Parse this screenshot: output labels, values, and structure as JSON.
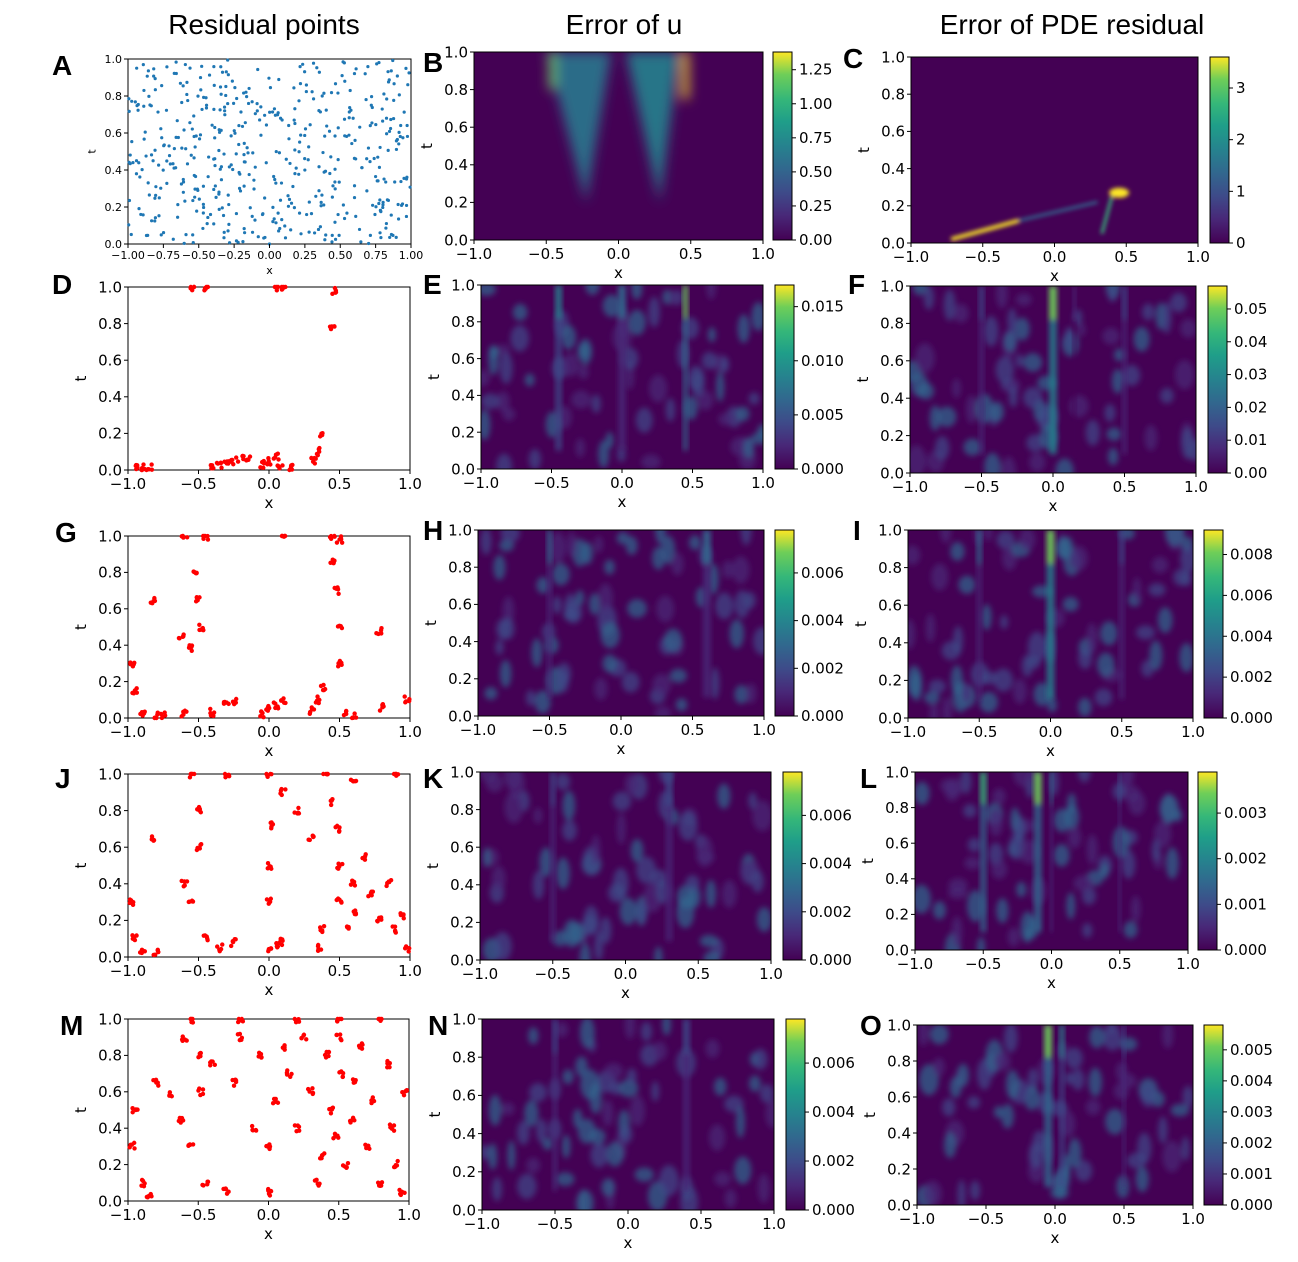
{
  "column_titles": [
    "Residual points",
    "Error of u",
    "Error of PDE residual"
  ],
  "chart_data": [
    {
      "panel": "A",
      "type": "scatter",
      "title": "Residual points",
      "xlabel": "x",
      "ylabel": "t",
      "xlim": [
        -1,
        1
      ],
      "ylim": [
        0,
        1
      ],
      "xticks": [
        "−1.00",
        "−0.75",
        "−0.50",
        "−0.25",
        "0.00",
        "0.25",
        "0.50",
        "0.75",
        "1.00"
      ],
      "yticks": [
        "0.0",
        "0.2",
        "0.4",
        "0.6",
        "0.8",
        "1.0"
      ],
      "marker_color": "#1f77b4",
      "distribution": "uniform random",
      "approx_count": 500
    },
    {
      "panel": "B",
      "type": "heatmap",
      "title": "Error of u",
      "xlabel": "x",
      "ylabel": "t",
      "xlim": [
        -1,
        1
      ],
      "ylim": [
        0,
        1
      ],
      "xticks": [
        "−1.0",
        "−0.5",
        "0.0",
        "0.5",
        "1.0"
      ],
      "yticks": [
        "0.0",
        "0.2",
        "0.4",
        "0.6",
        "0.8",
        "1.0"
      ],
      "colorbar_ticks": [
        "0.00",
        "0.25",
        "0.50",
        "0.75",
        "1.00",
        "1.25"
      ],
      "colorbar_max": 1.38
    },
    {
      "panel": "C",
      "type": "heatmap",
      "title": "Error of PDE residual",
      "xlabel": "x",
      "ylabel": "t",
      "xlim": [
        -1,
        1
      ],
      "ylim": [
        0,
        1
      ],
      "xticks": [
        "−1.0",
        "−0.5",
        "0.0",
        "0.5",
        "1.0"
      ],
      "yticks": [
        "0.0",
        "0.2",
        "0.4",
        "0.6",
        "0.8",
        "1.0"
      ],
      "colorbar_ticks": [
        "0",
        "1",
        "2",
        "3"
      ],
      "colorbar_max": 3.6
    },
    {
      "panel": "D",
      "type": "scatter",
      "xlabel": "x",
      "ylabel": "t",
      "xlim": [
        -1,
        1
      ],
      "ylim": [
        0,
        1
      ],
      "xticks": [
        "−1.0",
        "−0.5",
        "0.0",
        "0.5",
        "1.0"
      ],
      "yticks": [
        "0.0",
        "0.2",
        "0.4",
        "0.6",
        "0.8",
        "1.0"
      ],
      "marker_color": "#ff0000",
      "points": [
        [
          -0.95,
          0.01
        ],
        [
          -0.9,
          0.01
        ],
        [
          -0.85,
          0.01
        ],
        [
          -0.4,
          0.01
        ],
        [
          -0.35,
          0.02
        ],
        [
          -0.3,
          0.03
        ],
        [
          -0.25,
          0.05
        ],
        [
          -0.2,
          0.06
        ],
        [
          -0.15,
          0.07
        ],
        [
          -0.05,
          0.03
        ],
        [
          0.0,
          0.05
        ],
        [
          0.05,
          0.07
        ],
        [
          0.08,
          0.01
        ],
        [
          0.15,
          0.01
        ],
        [
          0.32,
          0.05
        ],
        [
          0.35,
          0.1
        ],
        [
          0.37,
          0.19
        ],
        [
          0.45,
          0.77
        ],
        [
          0.46,
          0.98
        ],
        [
          -0.55,
          1.0
        ],
        [
          -0.45,
          1.0
        ],
        [
          0.05,
          1.0
        ],
        [
          0.1,
          1.0
        ]
      ]
    },
    {
      "panel": "E",
      "type": "heatmap",
      "xlabel": "x",
      "ylabel": "t",
      "xlim": [
        -1,
        1
      ],
      "ylim": [
        0,
        1
      ],
      "xticks": [
        "−1.0",
        "−0.5",
        "0.0",
        "0.5",
        "1.0"
      ],
      "yticks": [
        "0.0",
        "0.2",
        "0.4",
        "0.6",
        "0.8",
        "1.0"
      ],
      "colorbar_ticks": [
        "0.000",
        "0.005",
        "0.010",
        "0.015"
      ],
      "colorbar_max": 0.017
    },
    {
      "panel": "F",
      "type": "heatmap",
      "xlabel": "x",
      "ylabel": "t",
      "xlim": [
        -1,
        1
      ],
      "ylim": [
        0,
        1
      ],
      "xticks": [
        "−1.0",
        "−0.5",
        "0.0",
        "0.5",
        "1.0"
      ],
      "yticks": [
        "0.0",
        "0.2",
        "0.4",
        "0.6",
        "0.8",
        "1.0"
      ],
      "colorbar_ticks": [
        "0.00",
        "0.01",
        "0.02",
        "0.03",
        "0.04",
        "0.05"
      ],
      "colorbar_max": 0.057
    },
    {
      "panel": "G",
      "type": "scatter",
      "xlabel": "x",
      "ylabel": "t",
      "xlim": [
        -1,
        1
      ],
      "ylim": [
        0,
        1
      ],
      "xticks": [
        "−1.0",
        "−0.5",
        "0.0",
        "0.5",
        "1.0"
      ],
      "yticks": [
        "0.0",
        "0.2",
        "0.4",
        "0.6",
        "0.8",
        "1.0"
      ],
      "marker_color": "#ff0000",
      "points": [
        [
          -0.97,
          0.3
        ],
        [
          -0.95,
          0.15
        ],
        [
          -0.9,
          0.02
        ],
        [
          -0.8,
          0.01
        ],
        [
          -0.75,
          0.01
        ],
        [
          -0.82,
          0.65
        ],
        [
          -0.62,
          0.45
        ],
        [
          -0.55,
          0.38
        ],
        [
          -0.52,
          0.8
        ],
        [
          -0.5,
          0.65
        ],
        [
          -0.48,
          0.5
        ],
        [
          -0.6,
          0.02
        ],
        [
          -0.4,
          0.03
        ],
        [
          -0.3,
          0.07
        ],
        [
          -0.25,
          0.09
        ],
        [
          -0.05,
          0.02
        ],
        [
          0.0,
          0.05
        ],
        [
          0.05,
          0.07
        ],
        [
          0.1,
          0.1
        ],
        [
          0.3,
          0.04
        ],
        [
          0.35,
          0.1
        ],
        [
          0.38,
          0.17
        ],
        [
          0.45,
          0.85
        ],
        [
          0.48,
          0.7
        ],
        [
          0.5,
          0.5
        ],
        [
          0.5,
          0.3
        ],
        [
          0.55,
          0.02
        ],
        [
          0.6,
          0.01
        ],
        [
          0.78,
          0.48
        ],
        [
          0.8,
          0.06
        ],
        [
          0.98,
          0.1
        ],
        [
          -0.6,
          1.0
        ],
        [
          -0.45,
          1.0
        ],
        [
          0.1,
          1.0
        ],
        [
          0.45,
          1.0
        ],
        [
          0.5,
          0.98
        ]
      ]
    },
    {
      "panel": "H",
      "type": "heatmap",
      "xlabel": "x",
      "ylabel": "t",
      "xlim": [
        -1,
        1
      ],
      "ylim": [
        0,
        1
      ],
      "xticks": [
        "−1.0",
        "−0.5",
        "0.0",
        "0.5",
        "1.0"
      ],
      "yticks": [
        "0.0",
        "0.2",
        "0.4",
        "0.6",
        "0.8",
        "1.0"
      ],
      "colorbar_ticks": [
        "0.000",
        "0.002",
        "0.004",
        "0.006"
      ],
      "colorbar_max": 0.0078
    },
    {
      "panel": "I",
      "type": "heatmap",
      "xlabel": "x",
      "ylabel": "t",
      "xlim": [
        -1,
        1
      ],
      "ylim": [
        0,
        1
      ],
      "xticks": [
        "−1.0",
        "−0.5",
        "0.0",
        "0.5",
        "1.0"
      ],
      "yticks": [
        "0.0",
        "0.2",
        "0.4",
        "0.6",
        "0.8",
        "1.0"
      ],
      "colorbar_ticks": [
        "0.000",
        "0.002",
        "0.004",
        "0.006",
        "0.008"
      ],
      "colorbar_max": 0.0092
    },
    {
      "panel": "J",
      "type": "scatter",
      "xlabel": "x",
      "ylabel": "t",
      "xlim": [
        -1,
        1
      ],
      "ylim": [
        0,
        1
      ],
      "xticks": [
        "−1.0",
        "−0.5",
        "0.0",
        "0.5",
        "1.0"
      ],
      "yticks": [
        "0.0",
        "0.2",
        "0.4",
        "0.6",
        "0.8",
        "1.0"
      ],
      "marker_color": "#ff0000",
      "points": [
        [
          -0.97,
          0.3
        ],
        [
          -0.95,
          0.1
        ],
        [
          -0.9,
          0.02
        ],
        [
          -0.8,
          0.02
        ],
        [
          -0.82,
          0.65
        ],
        [
          -0.6,
          0.4
        ],
        [
          -0.55,
          0.3
        ],
        [
          -0.5,
          0.8
        ],
        [
          -0.5,
          0.6
        ],
        [
          -0.45,
          0.1
        ],
        [
          -0.35,
          0.05
        ],
        [
          -0.25,
          0.08
        ],
        [
          0.0,
          0.04
        ],
        [
          0.05,
          0.06
        ],
        [
          0.1,
          0.08
        ],
        [
          0.0,
          0.3
        ],
        [
          0.0,
          0.5
        ],
        [
          0.03,
          0.72
        ],
        [
          0.1,
          0.9
        ],
        [
          0.2,
          0.8
        ],
        [
          0.3,
          0.65
        ],
        [
          0.35,
          0.05
        ],
        [
          0.38,
          0.15
        ],
        [
          0.45,
          0.85
        ],
        [
          0.48,
          0.7
        ],
        [
          0.5,
          0.5
        ],
        [
          0.5,
          0.3
        ],
        [
          0.55,
          0.15
        ],
        [
          0.6,
          0.4
        ],
        [
          0.62,
          0.25
        ],
        [
          0.68,
          0.55
        ],
        [
          0.72,
          0.35
        ],
        [
          0.78,
          0.2
        ],
        [
          0.85,
          0.4
        ],
        [
          0.88,
          0.15
        ],
        [
          0.95,
          0.22
        ],
        [
          0.98,
          0.05
        ],
        [
          -0.55,
          1.0
        ],
        [
          -0.3,
          1.0
        ],
        [
          0.0,
          1.0
        ],
        [
          0.4,
          1.0
        ],
        [
          0.6,
          0.98
        ],
        [
          0.9,
          1.0
        ]
      ]
    },
    {
      "panel": "K",
      "type": "heatmap",
      "xlabel": "x",
      "ylabel": "t",
      "xlim": [
        -1,
        1
      ],
      "ylim": [
        0,
        1
      ],
      "xticks": [
        "−1.0",
        "−0.5",
        "0.0",
        "0.5",
        "1.0"
      ],
      "yticks": [
        "0.0",
        "0.2",
        "0.4",
        "0.6",
        "0.8",
        "1.0"
      ],
      "colorbar_ticks": [
        "0.000",
        "0.002",
        "0.004",
        "0.006"
      ],
      "colorbar_max": 0.0078
    },
    {
      "panel": "L",
      "type": "heatmap",
      "xlabel": "x",
      "ylabel": "t",
      "xlim": [
        -1,
        1
      ],
      "ylim": [
        0,
        1
      ],
      "xticks": [
        "−1.0",
        "−0.5",
        "0.0",
        "0.5",
        "1.0"
      ],
      "yticks": [
        "0.0",
        "0.2",
        "0.4",
        "0.6",
        "0.8",
        "1.0"
      ],
      "colorbar_ticks": [
        "0.000",
        "0.001",
        "0.002",
        "0.003"
      ],
      "colorbar_max": 0.0039
    },
    {
      "panel": "M",
      "type": "scatter",
      "xlabel": "x",
      "ylabel": "t",
      "xlim": [
        -1,
        1
      ],
      "ylim": [
        0,
        1
      ],
      "xticks": [
        "−1.0",
        "−0.5",
        "0.0",
        "0.5",
        "1.0"
      ],
      "yticks": [
        "0.0",
        "0.2",
        "0.4",
        "0.6",
        "0.8",
        "1.0"
      ],
      "marker_color": "#ff0000",
      "points": [
        [
          -0.97,
          0.3
        ],
        [
          -0.95,
          0.5
        ],
        [
          -0.9,
          0.1
        ],
        [
          -0.85,
          0.02
        ],
        [
          -0.8,
          0.65
        ],
        [
          -0.7,
          0.58
        ],
        [
          -0.62,
          0.45
        ],
        [
          -0.6,
          0.9
        ],
        [
          -0.55,
          0.3
        ],
        [
          -0.5,
          0.8
        ],
        [
          -0.48,
          0.6
        ],
        [
          -0.45,
          0.1
        ],
        [
          -0.4,
          0.75
        ],
        [
          -0.3,
          0.05
        ],
        [
          -0.25,
          0.65
        ],
        [
          -0.2,
          0.9
        ],
        [
          -0.1,
          0.4
        ],
        [
          -0.05,
          0.8
        ],
        [
          0.0,
          0.05
        ],
        [
          0.0,
          0.3
        ],
        [
          0.05,
          0.55
        ],
        [
          0.1,
          0.85
        ],
        [
          0.15,
          0.7
        ],
        [
          0.2,
          0.4
        ],
        [
          0.25,
          0.9
        ],
        [
          0.3,
          0.6
        ],
        [
          0.35,
          0.1
        ],
        [
          0.38,
          0.25
        ],
        [
          0.42,
          0.8
        ],
        [
          0.45,
          0.5
        ],
        [
          0.48,
          0.35
        ],
        [
          0.5,
          0.9
        ],
        [
          0.52,
          0.7
        ],
        [
          0.55,
          0.2
        ],
        [
          0.6,
          0.45
        ],
        [
          0.62,
          0.65
        ],
        [
          0.65,
          0.85
        ],
        [
          0.7,
          0.3
        ],
        [
          0.75,
          0.55
        ],
        [
          0.8,
          0.1
        ],
        [
          0.85,
          0.75
        ],
        [
          0.88,
          0.4
        ],
        [
          0.9,
          0.2
        ],
        [
          0.95,
          0.05
        ],
        [
          0.97,
          0.6
        ],
        [
          -0.55,
          1.0
        ],
        [
          -0.2,
          1.0
        ],
        [
          0.2,
          1.0
        ],
        [
          0.5,
          1.0
        ],
        [
          0.8,
          1.0
        ]
      ]
    },
    {
      "panel": "N",
      "type": "heatmap",
      "xlabel": "x",
      "ylabel": "t",
      "xlim": [
        -1,
        1
      ],
      "ylim": [
        0,
        1
      ],
      "xticks": [
        "−1.0",
        "−0.5",
        "0.0",
        "0.5",
        "1.0"
      ],
      "yticks": [
        "0.0",
        "0.2",
        "0.4",
        "0.6",
        "0.8",
        "1.0"
      ],
      "colorbar_ticks": [
        "0.000",
        "0.002",
        "0.004",
        "0.006"
      ],
      "colorbar_max": 0.0078
    },
    {
      "panel": "O",
      "type": "heatmap",
      "xlabel": "x",
      "ylabel": "t",
      "xlim": [
        -1,
        1
      ],
      "ylim": [
        0,
        1
      ],
      "xticks": [
        "−1.0",
        "−0.5",
        "0.0",
        "0.5",
        "1.0"
      ],
      "yticks": [
        "0.0",
        "0.2",
        "0.4",
        "0.6",
        "0.8",
        "1.0"
      ],
      "colorbar_ticks": [
        "0.000",
        "0.001",
        "0.002",
        "0.003",
        "0.004",
        "0.005"
      ],
      "colorbar_max": 0.0058
    }
  ]
}
